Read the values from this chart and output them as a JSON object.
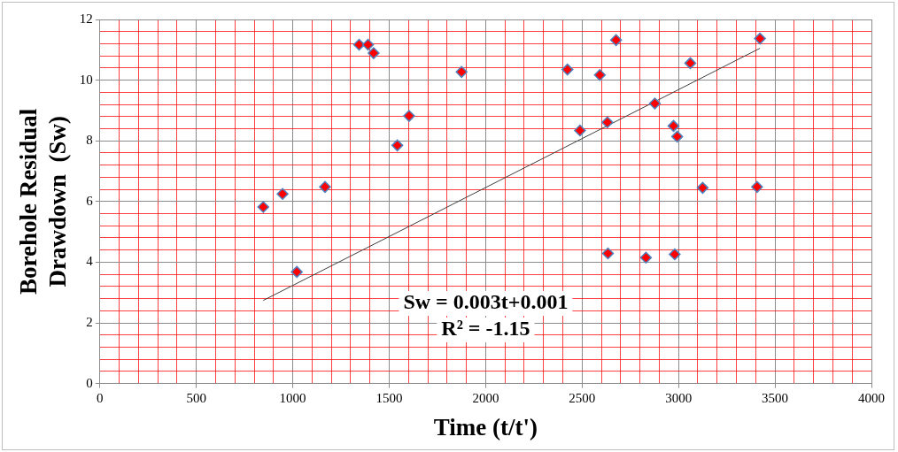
{
  "chart_data": {
    "type": "scatter",
    "xlabel": "Time (t/t')",
    "ylabel": "Borehole Residual\nDrawdown  (Sw)",
    "annotations": [
      "Sw = 0.003t+0.001",
      "R² = -1.15"
    ],
    "series": [
      {
        "color": "#ff0000",
        "marker": "diamond",
        "x": [
          847,
          947,
          1021,
          1167,
          1344,
          1390,
          1419,
          1542,
          1603,
          1875,
          2424,
          2489,
          2592,
          2631,
          2634,
          2676,
          2831,
          2877,
          2974,
          2980,
          2993,
          3061,
          3125,
          3407,
          3422
        ],
        "values": [
          5.82,
          6.25,
          3.68,
          6.48,
          11.17,
          11.17,
          10.89,
          7.85,
          8.82,
          10.27,
          10.35,
          8.34,
          10.17,
          8.61,
          4.29,
          11.32,
          4.15,
          9.23,
          8.49,
          4.26,
          8.14,
          10.56,
          6.45,
          6.48,
          11.37
        ]
      },
      {
        "type": "line",
        "color": "#404040",
        "marker": "none",
        "x": [
          847,
          3422
        ],
        "values": [
          2.74,
          11.05
        ]
      }
    ],
    "xlim": [
      0,
      4000
    ],
    "xticks": [
      0,
      {
        "value": 100,
        "label": null
      },
      {
        "value": 200,
        "label": null
      },
      {
        "value": 300,
        "label": null
      },
      {
        "value": 400,
        "label": null
      },
      500,
      {
        "value": 600,
        "label": null
      },
      {
        "value": 700,
        "label": null
      },
      {
        "value": 800,
        "label": null
      },
      {
        "value": 900,
        "label": null
      },
      1000,
      {
        "value": 1100,
        "label": null
      },
      {
        "value": 1200,
        "label": null
      },
      {
        "value": 1300,
        "label": null
      },
      {
        "value": 1400,
        "label": null
      },
      1500,
      {
        "value": 1600,
        "label": null
      },
      {
        "value": 1700,
        "label": null
      },
      {
        "value": 1800,
        "label": null
      },
      {
        "value": 1900,
        "label": null
      },
      2000,
      {
        "value": 2100,
        "label": null
      },
      {
        "value": 2200,
        "label": null
      },
      {
        "value": 2300,
        "label": null
      },
      {
        "value": 2400,
        "label": null
      },
      2500,
      {
        "value": 2600,
        "label": null
      },
      {
        "value": 2700,
        "label": null
      },
      {
        "value": 2800,
        "label": null
      },
      {
        "value": 2900,
        "label": null
      },
      3000,
      {
        "value": 3100,
        "label": null
      },
      {
        "value": 3200,
        "label": null
      },
      {
        "value": 3300,
        "label": null
      },
      {
        "value": 3400,
        "label": null
      },
      3500,
      {
        "value": 3600,
        "label": null
      },
      {
        "value": 3700,
        "label": null
      },
      {
        "value": 3800,
        "label": null
      },
      {
        "value": 3900,
        "label": null
      },
      4000
    ],
    "ylim": [
      0,
      12
    ],
    "yticks": [
      0,
      {
        "value": 0.4,
        "label": null
      },
      {
        "value": 0.8,
        "label": null
      },
      {
        "value": 1.2,
        "label": null
      },
      {
        "value": 1.6,
        "label": null
      },
      2,
      {
        "value": 2.4,
        "label": null
      },
      {
        "value": 2.8,
        "label": null
      },
      {
        "value": 3.2,
        "label": null
      },
      {
        "value": 3.6,
        "label": null
      },
      4,
      {
        "value": 4.4,
        "label": null
      },
      {
        "value": 4.8,
        "label": null
      },
      {
        "value": 5.2,
        "label": null
      },
      {
        "value": 5.6,
        "label": null
      },
      6,
      {
        "value": 6.4,
        "label": null
      },
      {
        "value": 6.8,
        "label": null
      },
      {
        "value": 7.2,
        "label": null
      },
      {
        "value": 7.6,
        "label": null
      },
      8,
      {
        "value": 8.4,
        "label": null
      },
      {
        "value": 8.8,
        "label": null
      },
      {
        "value": 9.2,
        "label": null
      },
      {
        "value": 9.6,
        "label": null
      },
      10,
      {
        "value": 10.4,
        "label": null
      },
      {
        "value": 10.8,
        "label": null
      },
      {
        "value": 11.2,
        "label": null
      },
      {
        "value": 11.6,
        "label": null
      },
      12
    ],
    "grid": true,
    "legend": false
  }
}
